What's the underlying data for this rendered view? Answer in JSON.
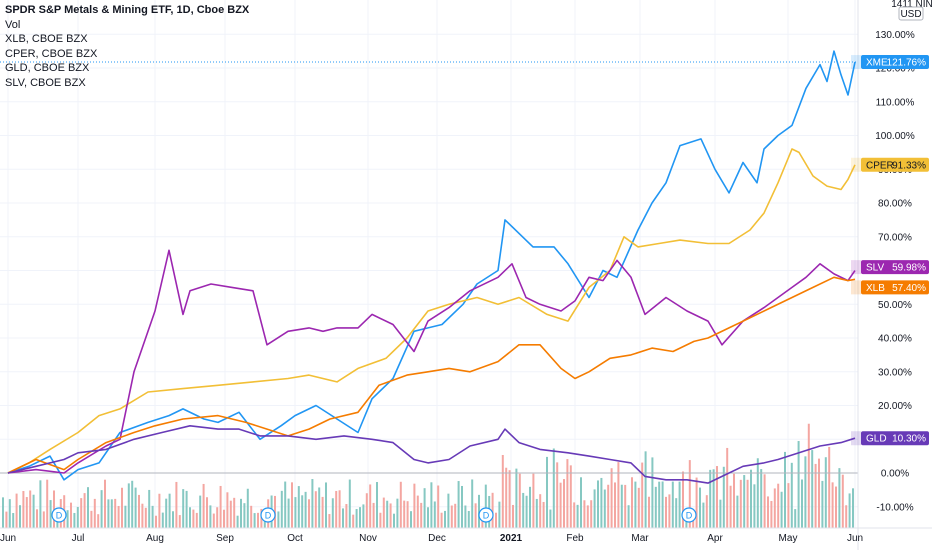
{
  "legend": {
    "main": "SPDR S&P Metals & Mining ETF, 1D, Cboe BZX",
    "vol": "Vol",
    "items": [
      "XLB, CBOE BZX",
      "CPER, CBOE BZX",
      "GLD, CBOE BZX",
      "SLV, CBOE BZX"
    ]
  },
  "scale_box": {
    "line1": "1411 NIN",
    "line2": "USD"
  },
  "chart_data": {
    "type": "line",
    "x_labels": [
      "Jun",
      "Jul",
      "Aug",
      "Sep",
      "Oct",
      "Nov",
      "Dec",
      "2021",
      "Feb",
      "Mar",
      "Apr",
      "May",
      "Jun"
    ],
    "y_ticks": [
      "130.00%",
      "120.00%",
      "110.00%",
      "100.00%",
      "90.00%",
      "80.00%",
      "70.00%",
      "60.00%",
      "50.00%",
      "40.00%",
      "30.00%",
      "20.00%",
      "10.00%",
      "0.00%",
      "-10.00%"
    ],
    "ylim": [
      -17,
      141
    ],
    "dividend_markers": [
      "D",
      "D",
      "D",
      "D"
    ],
    "series": [
      {
        "name": "XME",
        "color": "#2196f3",
        "last_label": "121.76%",
        "points": [
          [
            0,
            0
          ],
          [
            0.3,
            2
          ],
          [
            0.6,
            5
          ],
          [
            0.8,
            -2
          ],
          [
            1,
            1
          ],
          [
            1.3,
            3
          ],
          [
            1.6,
            12
          ],
          [
            2,
            15
          ],
          [
            2.3,
            17
          ],
          [
            2.5,
            19
          ],
          [
            2.8,
            16
          ],
          [
            3,
            15
          ],
          [
            3.3,
            18
          ],
          [
            3.6,
            10
          ],
          [
            3.9,
            14
          ],
          [
            4.1,
            17
          ],
          [
            4.4,
            20
          ],
          [
            4.7,
            16
          ],
          [
            5,
            12
          ],
          [
            5.2,
            22
          ],
          [
            5.5,
            28
          ],
          [
            5.8,
            42
          ],
          [
            6,
            43
          ],
          [
            6.2,
            44
          ],
          [
            6.5,
            50
          ],
          [
            6.7,
            56
          ],
          [
            7,
            60
          ],
          [
            7.1,
            75
          ],
          [
            7.5,
            67
          ],
          [
            7.8,
            67
          ],
          [
            8,
            62
          ],
          [
            8.3,
            52
          ],
          [
            8.5,
            60
          ],
          [
            8.7,
            58
          ],
          [
            9,
            72
          ],
          [
            9.2,
            80
          ],
          [
            9.4,
            86
          ],
          [
            9.6,
            97
          ],
          [
            9.9,
            99
          ],
          [
            10.1,
            90
          ],
          [
            10.3,
            83
          ],
          [
            10.5,
            92
          ],
          [
            10.7,
            86
          ],
          [
            10.8,
            96
          ],
          [
            11,
            100
          ],
          [
            11.2,
            103
          ],
          [
            11.4,
            114
          ],
          [
            11.6,
            121
          ],
          [
            11.7,
            116
          ],
          [
            11.8,
            125
          ],
          [
            11.9,
            118
          ],
          [
            12,
            112
          ],
          [
            12.1,
            121.76
          ]
        ]
      },
      {
        "name": "CPER",
        "color": "#f2bf36",
        "last_label": "91.33%",
        "points": [
          [
            0,
            0
          ],
          [
            0.3,
            3
          ],
          [
            0.6,
            7
          ],
          [
            1,
            12
          ],
          [
            1.3,
            17
          ],
          [
            1.6,
            19
          ],
          [
            2,
            24
          ],
          [
            2.5,
            25
          ],
          [
            3,
            26
          ],
          [
            3.5,
            27
          ],
          [
            4,
            28
          ],
          [
            4.3,
            29
          ],
          [
            4.7,
            27
          ],
          [
            5,
            31
          ],
          [
            5.4,
            34
          ],
          [
            5.7,
            40
          ],
          [
            6,
            48
          ],
          [
            6.3,
            50
          ],
          [
            6.7,
            52
          ],
          [
            7,
            50
          ],
          [
            7.3,
            52
          ],
          [
            7.7,
            47
          ],
          [
            8,
            45
          ],
          [
            8.3,
            55
          ],
          [
            8.6,
            60
          ],
          [
            8.8,
            70
          ],
          [
            9,
            67
          ],
          [
            9.3,
            68
          ],
          [
            9.6,
            69
          ],
          [
            10,
            68
          ],
          [
            10.3,
            68
          ],
          [
            10.6,
            72
          ],
          [
            10.8,
            77
          ],
          [
            11,
            86
          ],
          [
            11.2,
            96
          ],
          [
            11.3,
            95
          ],
          [
            11.5,
            88
          ],
          [
            11.7,
            85
          ],
          [
            11.9,
            84
          ],
          [
            12,
            87
          ],
          [
            12.1,
            91.33
          ]
        ]
      },
      {
        "name": "SLV",
        "color": "#9c27b0",
        "last_label": "59.98%",
        "points": [
          [
            0,
            0
          ],
          [
            0.4,
            1
          ],
          [
            0.8,
            0
          ],
          [
            1,
            3
          ],
          [
            1.4,
            8
          ],
          [
            1.6,
            10
          ],
          [
            1.8,
            30
          ],
          [
            2.1,
            48
          ],
          [
            2.3,
            66
          ],
          [
            2.5,
            47
          ],
          [
            2.6,
            54
          ],
          [
            2.9,
            56
          ],
          [
            3.2,
            55
          ],
          [
            3.5,
            54
          ],
          [
            3.7,
            38
          ],
          [
            4,
            42
          ],
          [
            4.3,
            43
          ],
          [
            4.5,
            42
          ],
          [
            4.7,
            43
          ],
          [
            5,
            43
          ],
          [
            5.2,
            47
          ],
          [
            5.5,
            44
          ],
          [
            5.8,
            36
          ],
          [
            6,
            45
          ],
          [
            6.3,
            49
          ],
          [
            6.6,
            54
          ],
          [
            7,
            58
          ],
          [
            7.2,
            62
          ],
          [
            7.4,
            52
          ],
          [
            7.6,
            50
          ],
          [
            7.9,
            48
          ],
          [
            8.1,
            51
          ],
          [
            8.3,
            58
          ],
          [
            8.5,
            57
          ],
          [
            8.7,
            63
          ],
          [
            8.9,
            58
          ],
          [
            9.1,
            47
          ],
          [
            9.4,
            52
          ],
          [
            9.7,
            48
          ],
          [
            10,
            45
          ],
          [
            10.2,
            38
          ],
          [
            10.5,
            45
          ],
          [
            10.8,
            49
          ],
          [
            11,
            52
          ],
          [
            11.2,
            55
          ],
          [
            11.4,
            58
          ],
          [
            11.6,
            62
          ],
          [
            11.8,
            59
          ],
          [
            12,
            57
          ],
          [
            12.1,
            59.98
          ]
        ]
      },
      {
        "name": "XLB",
        "color": "#f57c00",
        "last_label": "57.40%",
        "points": [
          [
            0,
            0
          ],
          [
            0.4,
            4
          ],
          [
            0.8,
            1
          ],
          [
            1,
            4
          ],
          [
            1.4,
            9
          ],
          [
            1.8,
            12
          ],
          [
            2.1,
            14
          ],
          [
            2.5,
            16
          ],
          [
            3,
            17
          ],
          [
            3.4,
            15
          ],
          [
            3.7,
            13
          ],
          [
            4,
            11
          ],
          [
            4.3,
            13
          ],
          [
            4.6,
            16
          ],
          [
            5,
            18
          ],
          [
            5.3,
            26
          ],
          [
            5.7,
            29
          ],
          [
            6,
            30
          ],
          [
            6.3,
            31
          ],
          [
            6.6,
            30
          ],
          [
            7,
            33
          ],
          [
            7.3,
            38
          ],
          [
            7.6,
            38
          ],
          [
            7.9,
            31
          ],
          [
            8.1,
            28
          ],
          [
            8.3,
            30
          ],
          [
            8.6,
            34
          ],
          [
            8.9,
            35
          ],
          [
            9.2,
            37
          ],
          [
            9.5,
            36
          ],
          [
            9.8,
            39
          ],
          [
            10,
            40
          ],
          [
            10.3,
            43
          ],
          [
            10.6,
            46
          ],
          [
            10.9,
            49
          ],
          [
            11.2,
            52
          ],
          [
            11.5,
            55
          ],
          [
            11.8,
            58
          ],
          [
            12,
            57
          ],
          [
            12.1,
            57.4
          ]
        ]
      },
      {
        "name": "GLD",
        "color": "#673ab7",
        "last_label": "10.30%",
        "points": [
          [
            0,
            0
          ],
          [
            0.4,
            2
          ],
          [
            0.8,
            4
          ],
          [
            1,
            6
          ],
          [
            1.4,
            7
          ],
          [
            1.8,
            10
          ],
          [
            2.2,
            12
          ],
          [
            2.6,
            14
          ],
          [
            3,
            13
          ],
          [
            3.3,
            13
          ],
          [
            3.6,
            11
          ],
          [
            4,
            11
          ],
          [
            4.4,
            10
          ],
          [
            4.8,
            11
          ],
          [
            5.2,
            10
          ],
          [
            5.5,
            9
          ],
          [
            5.8,
            4
          ],
          [
            6,
            3
          ],
          [
            6.3,
            4
          ],
          [
            6.6,
            8
          ],
          [
            7,
            10
          ],
          [
            7.1,
            13
          ],
          [
            7.3,
            9
          ],
          [
            7.6,
            7
          ],
          [
            8,
            6
          ],
          [
            8.3,
            5
          ],
          [
            8.6,
            4
          ],
          [
            8.9,
            3
          ],
          [
            9.1,
            -1
          ],
          [
            9.4,
            -2
          ],
          [
            9.7,
            -2
          ],
          [
            10,
            -3
          ],
          [
            10.2,
            -1
          ],
          [
            10.5,
            2
          ],
          [
            10.8,
            3
          ],
          [
            11,
            4
          ],
          [
            11.3,
            6
          ],
          [
            11.6,
            8
          ],
          [
            11.9,
            9
          ],
          [
            12.1,
            10.3
          ]
        ]
      }
    ]
  }
}
